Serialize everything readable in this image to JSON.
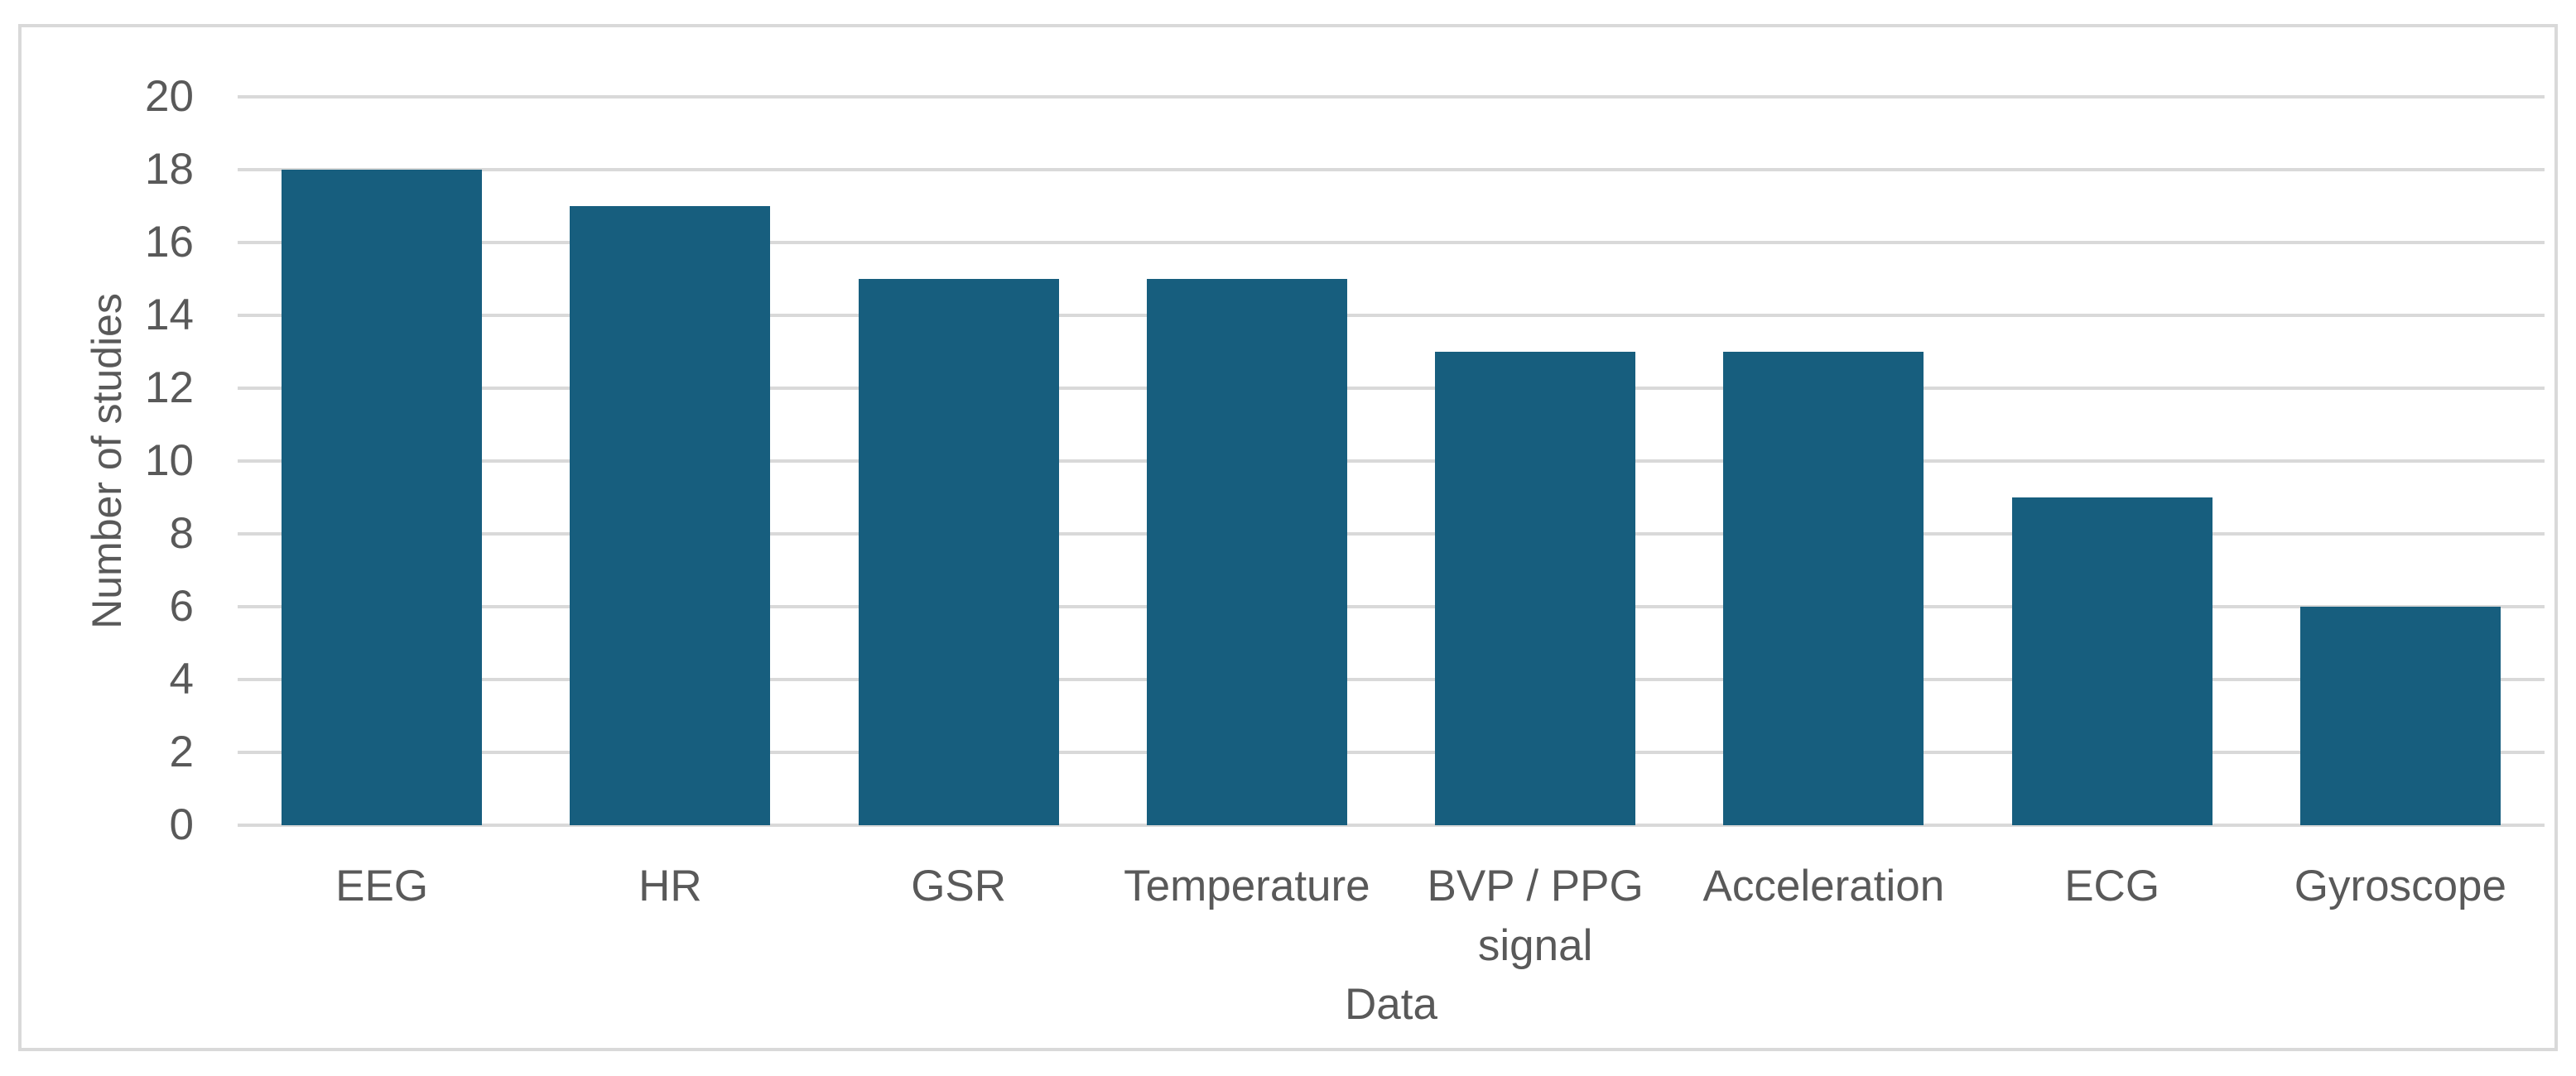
{
  "chart_data": {
    "type": "bar",
    "title": "",
    "categories": [
      "EEG",
      "HR",
      "GSR",
      "Temperature",
      "BVP / PPG\nsignal",
      "Acceleration",
      "ECG",
      "Gyroscope"
    ],
    "values": [
      18,
      17,
      15,
      15,
      13,
      13,
      9,
      6
    ],
    "xlabel": "Data",
    "ylabel": "Number of studies",
    "ylim": [
      0,
      20
    ],
    "yticks": [
      0,
      2,
      4,
      6,
      8,
      10,
      12,
      14,
      16,
      18,
      20
    ],
    "grid": "horizontal",
    "legend": false,
    "series_name": "Number of studies"
  },
  "style": {
    "bar_color": "#175e7e",
    "grid_color": "#d9d9d9",
    "border_color": "#d9d9d9",
    "text_color": "#595959",
    "background": "#ffffff"
  }
}
